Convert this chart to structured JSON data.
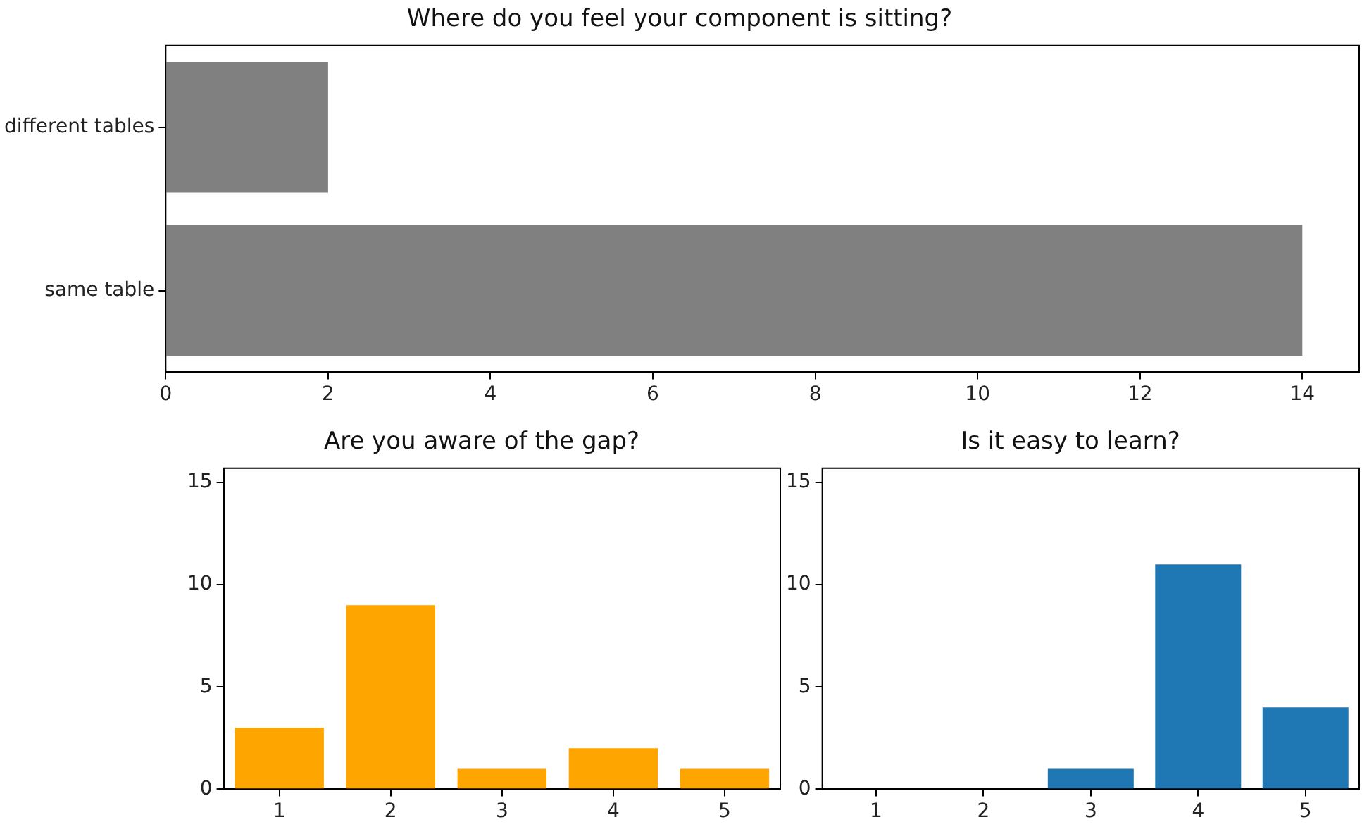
{
  "chart_data": [
    {
      "type": "bar",
      "orientation": "horizontal",
      "title": "Where do you feel your component is sitting?",
      "categories": [
        "different tables",
        "same table"
      ],
      "values": [
        2,
        14
      ],
      "color": "#808080",
      "xlim": [
        0,
        14.7
      ],
      "xticks": [
        0,
        2,
        4,
        6,
        8,
        10,
        12,
        14
      ],
      "grid": false,
      "legend": false
    },
    {
      "type": "bar",
      "title": "Are you aware of the gap?",
      "categories": [
        "1",
        "2",
        "3",
        "4",
        "5"
      ],
      "values": [
        3,
        9,
        1,
        2,
        1
      ],
      "color": "#ffa500",
      "ylim": [
        0,
        15.7
      ],
      "yticks": [
        0,
        5,
        10,
        15
      ],
      "grid": false,
      "legend": false
    },
    {
      "type": "bar",
      "title": "Is it easy to learn?",
      "categories": [
        "1",
        "2",
        "3",
        "4",
        "5"
      ],
      "values": [
        0,
        0,
        1,
        11,
        4
      ],
      "color": "#1f77b4",
      "ylim": [
        0,
        15.7
      ],
      "yticks": [
        0,
        5,
        10,
        15
      ],
      "grid": false,
      "legend": false
    }
  ]
}
